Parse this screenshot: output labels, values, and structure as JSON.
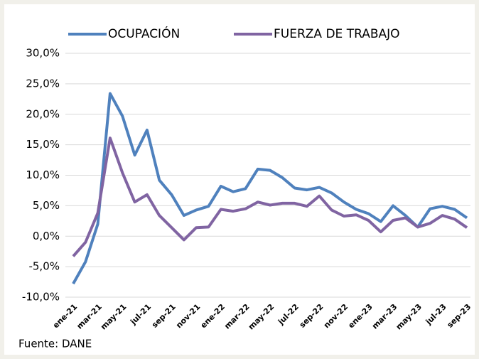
{
  "chart_data": {
    "type": "line",
    "categories": [
      "ene-21",
      null,
      "mar-21",
      null,
      "may-21",
      null,
      "jul-21",
      null,
      "sep-21",
      null,
      "nov-21",
      null,
      "ene-22",
      null,
      "mar-22",
      null,
      "may-22",
      null,
      "jul-22",
      null,
      "sep-22",
      null,
      "nov-22",
      null,
      "ene-23",
      null,
      "mar-23",
      null,
      "may-23",
      null,
      "jul-23",
      null,
      "sep-23"
    ],
    "series": [
      {
        "name": "OCUPACIÓN",
        "color": "#4f81bd",
        "values": [
          -7.8,
          -4.2,
          2.0,
          23.4,
          19.7,
          13.3,
          17.4,
          9.2,
          6.8,
          3.4,
          4.3,
          4.9,
          8.2,
          7.3,
          7.8,
          11.0,
          10.8,
          9.6,
          7.9,
          7.6,
          8.0,
          7.1,
          5.6,
          4.4,
          3.7,
          2.4,
          5.0,
          3.4,
          1.5,
          4.5,
          4.9,
          4.4,
          3.0
        ]
      },
      {
        "name": "FUERZA DE TRABAJO",
        "color": "#8064a2",
        "values": [
          -3.3,
          -1.0,
          3.8,
          16.1,
          10.4,
          5.6,
          6.8,
          3.4,
          1.4,
          -0.6,
          1.4,
          1.5,
          4.4,
          4.1,
          4.5,
          5.6,
          5.1,
          5.4,
          5.4,
          4.9,
          6.6,
          4.3,
          3.3,
          3.5,
          2.6,
          0.7,
          2.6,
          3.0,
          1.5,
          2.1,
          3.4,
          2.8,
          1.4
        ]
      }
    ],
    "ylim": [
      -10,
      30
    ],
    "yticks": [
      {
        "value": -10,
        "label": "-10,0%"
      },
      {
        "value": -5,
        "label": "-5,0%"
      },
      {
        "value": 0,
        "label": "0,0%"
      },
      {
        "value": 5,
        "label": "5,0%"
      },
      {
        "value": 10,
        "label": "10,0%"
      },
      {
        "value": 15,
        "label": "15,0%"
      },
      {
        "value": 20,
        "label": "20,0%"
      },
      {
        "value": 25,
        "label": "25,0%"
      },
      {
        "value": 30,
        "label": "30,0%"
      }
    ],
    "grid": true,
    "legend": "top",
    "source": "Fuente: DANE"
  }
}
